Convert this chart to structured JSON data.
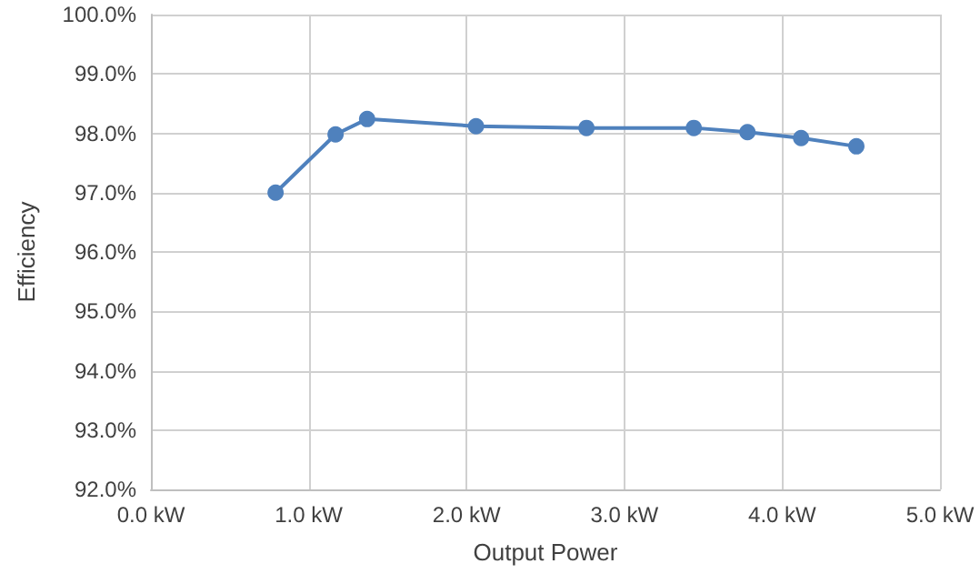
{
  "chart_data": {
    "type": "line",
    "xlabel": "Output Power",
    "ylabel": "Efficiency",
    "x": [
      0.79,
      1.17,
      1.37,
      2.06,
      2.76,
      3.44,
      3.78,
      4.12,
      4.47
    ],
    "series": [
      {
        "color": "#4f81bd",
        "values": [
          97.0,
          97.98,
          98.24,
          98.12,
          98.09,
          98.09,
          98.02,
          97.92,
          97.78
        ]
      }
    ],
    "xlim": [
      0,
      5
    ],
    "xticks": [
      {
        "value": 0,
        "label": "0.0 kW"
      },
      {
        "value": 1,
        "label": "1.0 kW"
      },
      {
        "value": 2,
        "label": "2.0 kW"
      },
      {
        "value": 3,
        "label": "3.0 kW"
      },
      {
        "value": 4,
        "label": "4.0 kW"
      },
      {
        "value": 5,
        "label": "5.0 kW"
      }
    ],
    "ylim": [
      92,
      100
    ],
    "yticks": [
      {
        "value": 92,
        "label": "92.0%"
      },
      {
        "value": 93,
        "label": "93.0%"
      },
      {
        "value": 94,
        "label": "94.0%"
      },
      {
        "value": 95,
        "label": "95.0%"
      },
      {
        "value": 96,
        "label": "96.0%"
      },
      {
        "value": 97,
        "label": "97.0%"
      },
      {
        "value": 98,
        "label": "98.0%"
      },
      {
        "value": 99,
        "label": "99.0%"
      },
      {
        "value": 100,
        "label": "100.0%"
      }
    ],
    "grid": true,
    "marker": "circle",
    "line_style": "solid"
  }
}
